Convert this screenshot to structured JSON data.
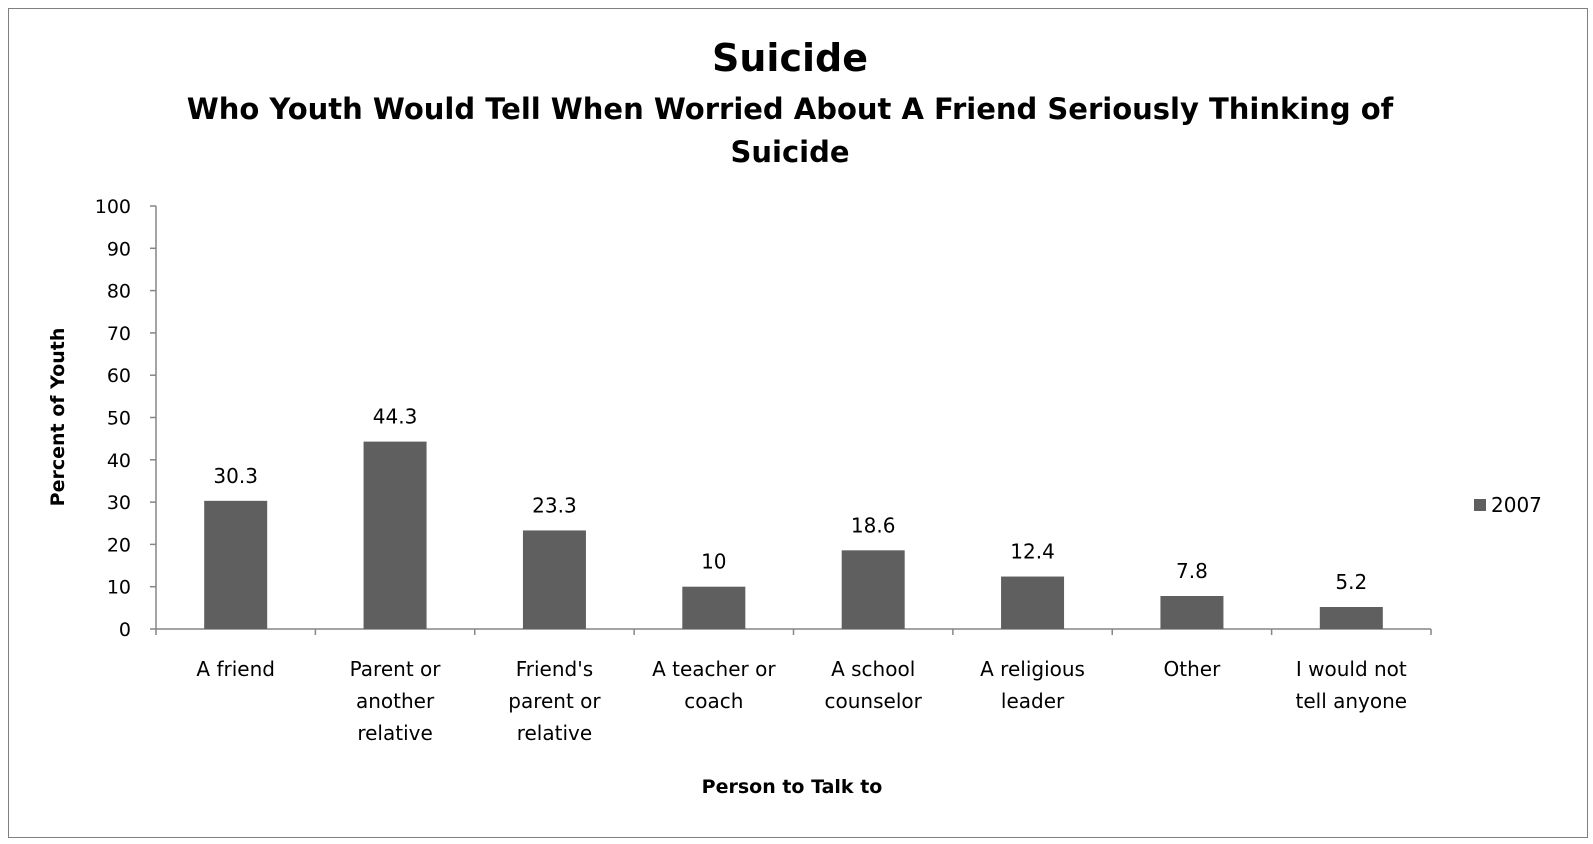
{
  "chart_data": {
    "type": "bar",
    "title": "Suicide",
    "subtitle": "Who Youth Would Tell When Worried About A Friend Seriously Thinking of Suicide",
    "subtitle_lines": [
      "Who Youth Would Tell When Worried About A Friend Seriously Thinking of",
      "Suicide"
    ],
    "xlabel": "Person to Talk to",
    "ylabel": "Percent of Youth",
    "ylim": [
      0,
      100
    ],
    "yticks": [
      0,
      10,
      20,
      30,
      40,
      50,
      60,
      70,
      80,
      90,
      100
    ],
    "categories": [
      [
        "A friend"
      ],
      [
        "Parent or",
        "another",
        "relative"
      ],
      [
        "Friend's",
        "parent or",
        "relative"
      ],
      [
        "A teacher or",
        "coach"
      ],
      [
        "A school",
        "counselor"
      ],
      [
        "A religious",
        "leader"
      ],
      [
        "Other"
      ],
      [
        "I would not",
        "tell anyone"
      ]
    ],
    "series": [
      {
        "name": "2007",
        "values": [
          30.3,
          44.3,
          23.3,
          10,
          18.6,
          12.4,
          7.8,
          5.2
        ],
        "color": "#5f5f5f"
      }
    ],
    "data_labels": true,
    "grid": false,
    "legend": "right"
  }
}
